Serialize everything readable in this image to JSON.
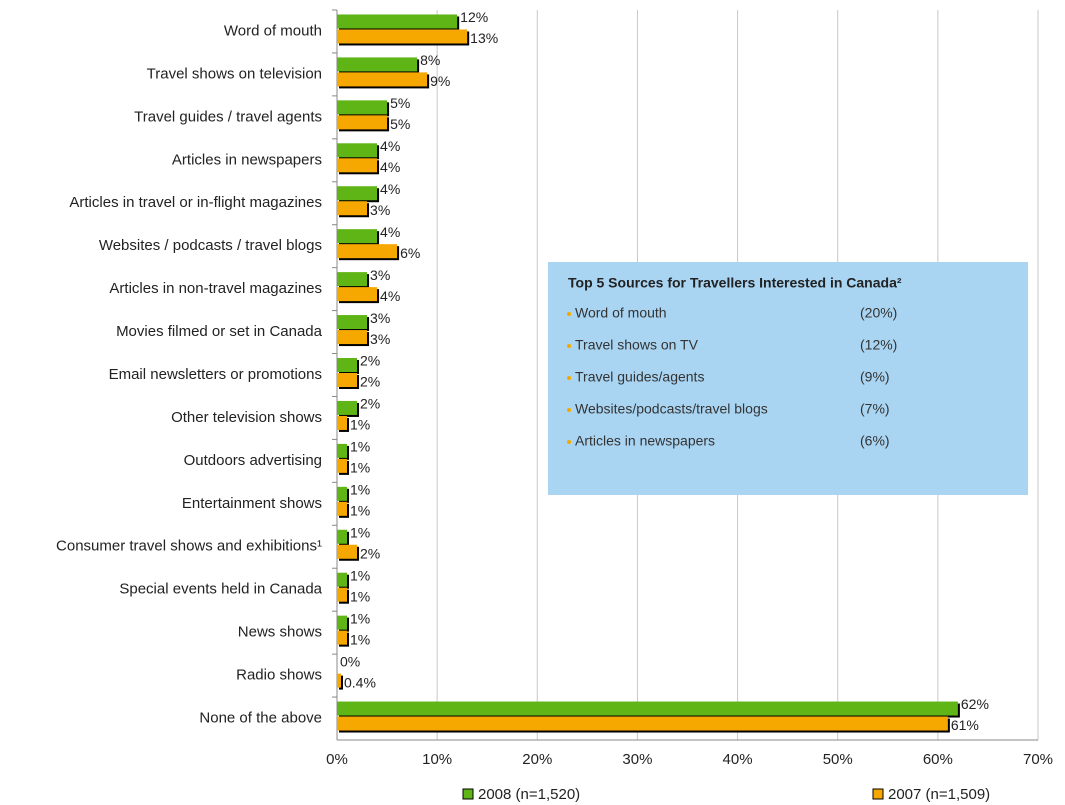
{
  "chart_data": {
    "type": "hbar",
    "categories": [
      "Word of mouth",
      "Travel shows on television",
      "Travel guides / travel agents",
      "Articles in newspapers",
      "Articles in travel or in-flight magazines",
      "Websites / podcasts / travel blogs",
      "Articles in non-travel magazines",
      "Movies filmed or set in Canada",
      "Email newsletters or promotions",
      "Other television shows",
      "Outdoors advertising",
      "Entertainment shows",
      "Consumer travel shows and exhibitions¹",
      "Special events held in Canada",
      "News shows",
      "Radio shows",
      "None of the above"
    ],
    "series": [
      {
        "name": "2008 (n=1,520)",
        "color": "#5fb516",
        "values": [
          12,
          8,
          5,
          4,
          4,
          4,
          3,
          3,
          2,
          2,
          1,
          1,
          1,
          1,
          1,
          0,
          62
        ],
        "value_labels": [
          "12%",
          "8%",
          "5%",
          "4%",
          "4%",
          "4%",
          "3%",
          "3%",
          "2%",
          "2%",
          "1%",
          "1%",
          "1%",
          "1%",
          "1%",
          "0%",
          "62%"
        ]
      },
      {
        "name": "2007 (n=1,509)",
        "color": "#f7a800",
        "values": [
          13,
          9,
          5,
          4,
          3,
          6,
          4,
          3,
          2,
          1,
          1,
          1,
          2,
          1,
          1,
          0.4,
          61
        ],
        "value_labels": [
          "13%",
          "9%",
          "5%",
          "4%",
          "3%",
          "6%",
          "4%",
          "3%",
          "2%",
          "1%",
          "1%",
          "1%",
          "2%",
          "1%",
          "1%",
          "0.4%",
          "61%"
        ]
      }
    ],
    "xlim": [
      0,
      70
    ],
    "xticks": [
      {
        "value": 0,
        "label": "0%"
      },
      {
        "value": 10,
        "label": "10%"
      },
      {
        "value": 20,
        "label": "20%"
      },
      {
        "value": 30,
        "label": "30%"
      },
      {
        "value": 40,
        "label": "40%"
      },
      {
        "value": 50,
        "label": "50%"
      },
      {
        "value": 60,
        "label": "60%"
      },
      {
        "value": 70,
        "label": "70%"
      }
    ],
    "grid": true,
    "legend": "bottom",
    "inset": {
      "title": "Top 5 Sources for Travellers  Interested in Canada²",
      "items": [
        {
          "label": "Word of mouth",
          "value": "(20%)"
        },
        {
          "label": "Travel shows on TV",
          "value": "(12%)"
        },
        {
          "label": "Travel guides/agents",
          "value": "(9%)"
        },
        {
          "label": "Websites/podcasts/travel blogs",
          "value": "(7%)"
        },
        {
          "label": "Articles in newspapers",
          "value": "(6%)"
        }
      ]
    }
  }
}
